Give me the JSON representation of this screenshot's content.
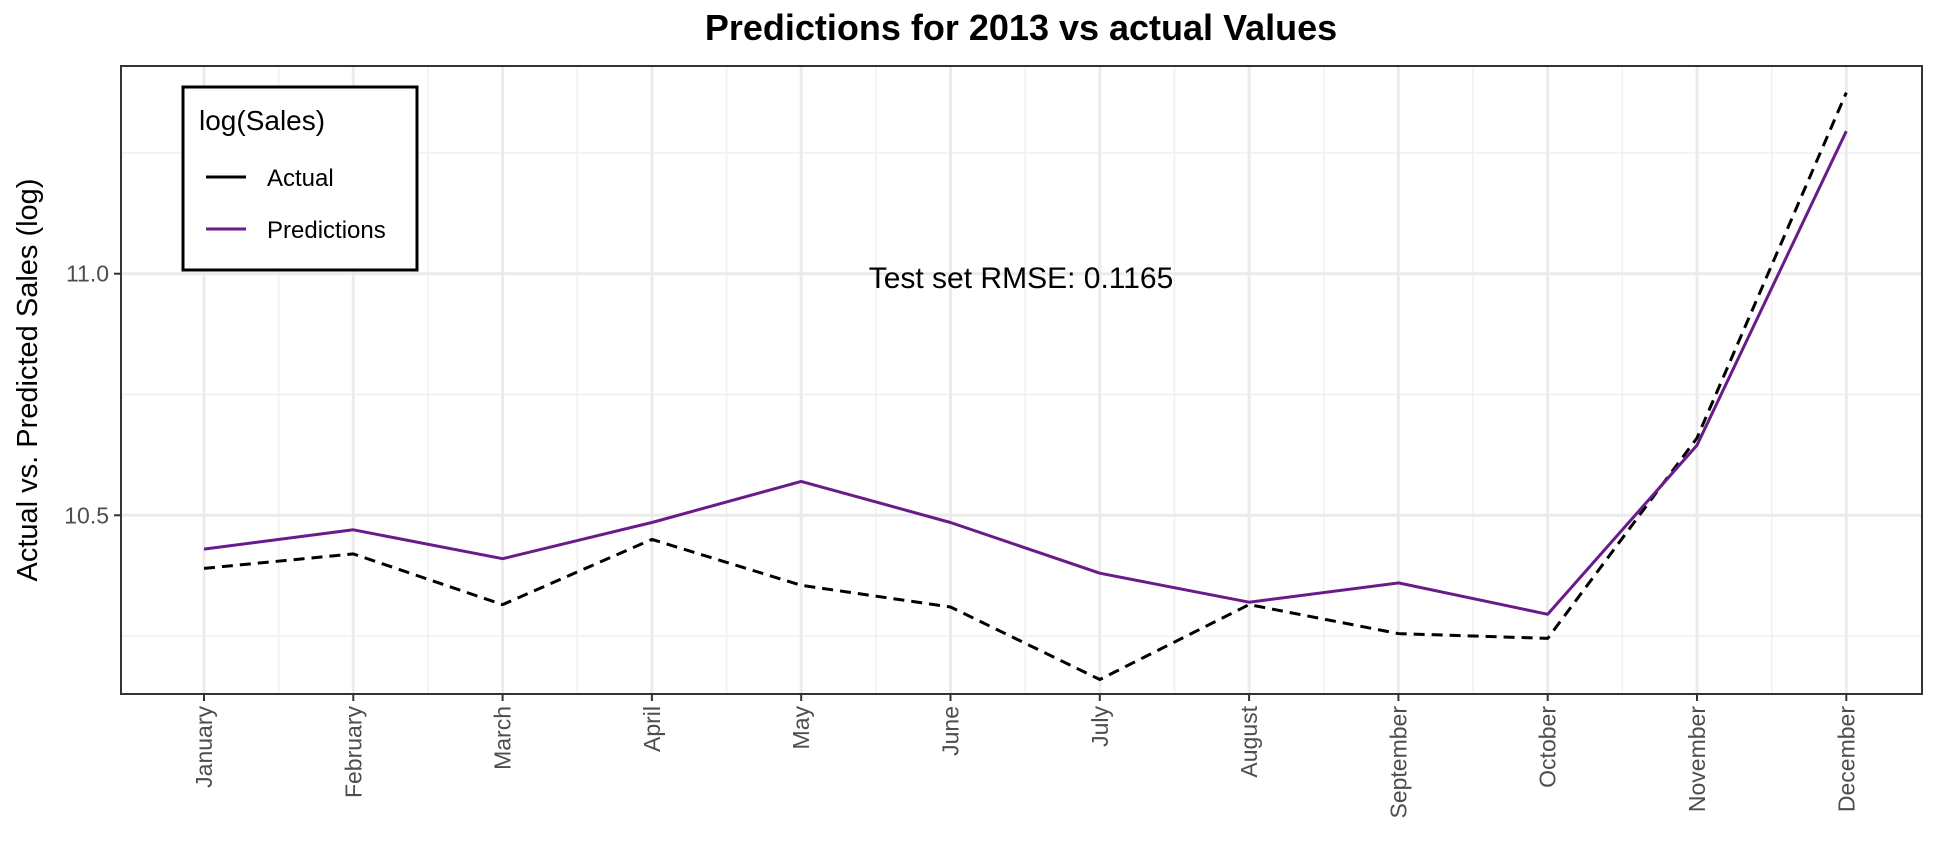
{
  "chart_data": {
    "type": "line",
    "title": "Predictions for 2013 vs actual Values",
    "ylabel": "Actual vs. Predicted Sales (log)",
    "categories": [
      "January",
      "February",
      "March",
      "April",
      "May",
      "June",
      "July",
      "August",
      "September",
      "October",
      "November",
      "December"
    ],
    "ylim": [
      10.13,
      11.43
    ],
    "yticks": [
      10.5,
      11.0
    ],
    "ytick_labels": [
      "10.5",
      "11.0"
    ],
    "grid": true,
    "legend": {
      "title": "log(Sales)",
      "position": "top-left"
    },
    "series": [
      {
        "name": "Actual",
        "color": "#000000",
        "style": "dashed",
        "values": [
          10.39,
          10.42,
          10.315,
          10.45,
          10.355,
          10.31,
          10.16,
          10.315,
          10.255,
          10.245,
          10.66,
          11.375
        ]
      },
      {
        "name": "Predictions",
        "color": "#6a1b8a",
        "style": "solid",
        "values": [
          10.43,
          10.47,
          10.41,
          10.485,
          10.57,
          10.485,
          10.38,
          10.32,
          10.36,
          10.295,
          10.645,
          11.295
        ]
      }
    ],
    "annotation": "Test set RMSE: 0.1165"
  }
}
